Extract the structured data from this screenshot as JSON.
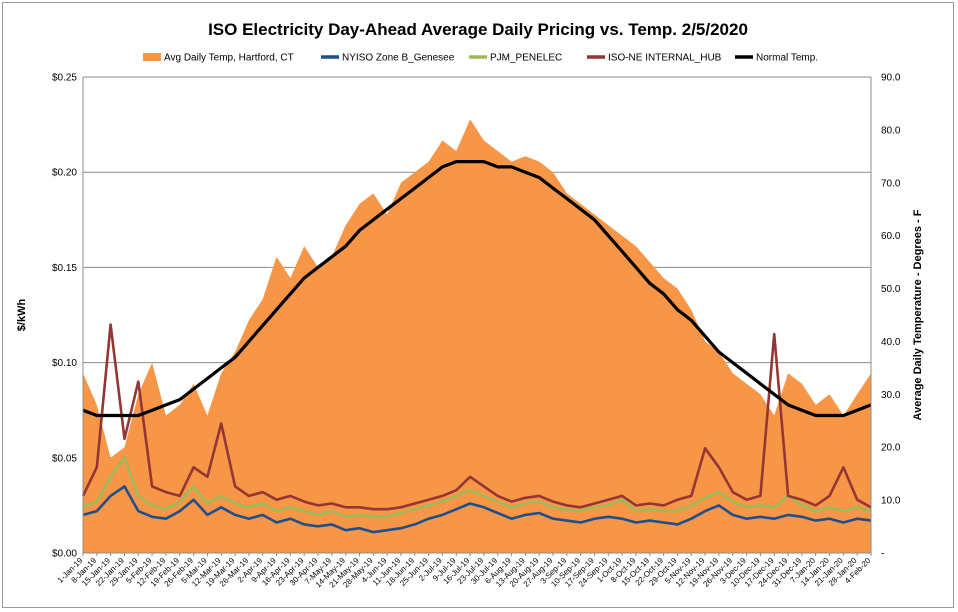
{
  "chart_data": {
    "type": "area",
    "title": "ISO Electricity Day-Ahead Average Daily Pricing vs. Temp. 2/5/2020",
    "ylabel": "$/kWh",
    "y2label": "Average Daily Temperature - Degrees - F",
    "ylim": [
      0,
      0.25
    ],
    "y2lim": [
      0,
      90
    ],
    "yticks": [
      "$0.00",
      "$0.05",
      "$0.10",
      "$0.15",
      "$0.20",
      "$0.25"
    ],
    "y2ticks": [
      "-",
      "10.0",
      "20.0",
      "30.0",
      "40.0",
      "50.0",
      "60.0",
      "70.0",
      "80.0",
      "90.0"
    ],
    "grid": true,
    "legend_position": "top",
    "x_start": "1-Jan-19",
    "x_labels": [
      "1-Jan-19",
      "8-Jan-19",
      "15-Jan-19",
      "22-Jan-19",
      "29-Jan-19",
      "5-Feb-19",
      "12-Feb-19",
      "19-Feb-19",
      "26-Feb-19",
      "5-Mar-19",
      "12-Mar-19",
      "19-Mar-19",
      "26-Mar-19",
      "2-Apr-19",
      "9-Apr-19",
      "16-Apr-19",
      "23-Apr-19",
      "30-Apr-19",
      "7-May-19",
      "14-May-19",
      "21-May-19",
      "28-May-19",
      "4-Jun-19",
      "11-Jun-19",
      "18-Jun-19",
      "25-Jun-19",
      "2-Jul-19",
      "9-Jul-19",
      "16-Jul-19",
      "23-Jul-19",
      "30-Jul-19",
      "6-Aug-19",
      "13-Aug-19",
      "20-Aug-19",
      "27-Aug-19",
      "3-Sep-19",
      "10-Sep-19",
      "17-Sep-19",
      "24-Sep-19",
      "1-Oct-19",
      "8-Oct-19",
      "15-Oct-19",
      "22-Oct-19",
      "29-Oct-19",
      "5-Nov-19",
      "12-Nov-19",
      "19-Nov-19",
      "26-Nov-19",
      "3-Dec-19",
      "10-Dec-19",
      "17-Dec-19",
      "24-Dec-19",
      "31-Dec-19",
      "7-Jan-20",
      "14-Jan-20",
      "21-Jan-20",
      "28-Jan-20",
      "4-Feb-20"
    ],
    "series": [
      {
        "name": "Avg Daily Temp, Hartford, CT",
        "kind": "area",
        "axis": "right",
        "color": "#F79646",
        "x": [
          "1-Jan-19",
          "8-Jan-19",
          "15-Jan-19",
          "22-Jan-19",
          "29-Jan-19",
          "5-Feb-19",
          "12-Feb-19",
          "19-Feb-19",
          "26-Feb-19",
          "5-Mar-19",
          "12-Mar-19",
          "19-Mar-19",
          "26-Mar-19",
          "2-Apr-19",
          "9-Apr-19",
          "16-Apr-19",
          "23-Apr-19",
          "30-Apr-19",
          "7-May-19",
          "14-May-19",
          "21-May-19",
          "28-May-19",
          "4-Jun-19",
          "11-Jun-19",
          "18-Jun-19",
          "25-Jun-19",
          "2-Jul-19",
          "9-Jul-19",
          "16-Jul-19",
          "23-Jul-19",
          "30-Jul-19",
          "6-Aug-19",
          "13-Aug-19",
          "20-Aug-19",
          "27-Aug-19",
          "3-Sep-19",
          "10-Sep-19",
          "17-Sep-19",
          "24-Sep-19",
          "1-Oct-19",
          "8-Oct-19",
          "15-Oct-19",
          "22-Oct-19",
          "29-Oct-19",
          "5-Nov-19",
          "12-Nov-19",
          "19-Nov-19",
          "26-Nov-19",
          "3-Dec-19",
          "10-Dec-19",
          "17-Dec-19",
          "24-Dec-19",
          "31-Dec-19",
          "7-Jan-20",
          "14-Jan-20",
          "21-Jan-20",
          "28-Jan-20",
          "4-Feb-20"
        ],
        "values": [
          34,
          28,
          18,
          20,
          30,
          36,
          26,
          28,
          32,
          26,
          34,
          38,
          44,
          48,
          56,
          52,
          58,
          54,
          56,
          62,
          66,
          68,
          64,
          70,
          72,
          74,
          78,
          76,
          82,
          78,
          76,
          74,
          75,
          74,
          72,
          68,
          66,
          64,
          62,
          60,
          58,
          55,
          52,
          50,
          46,
          40,
          38,
          34,
          32,
          30,
          26,
          34,
          32,
          28,
          30,
          26,
          30,
          34
        ]
      },
      {
        "name": "NYISO Zone B_Genesee",
        "kind": "line",
        "axis": "left",
        "color": "#1F4E8C",
        "x": [
          "1-Jan-19",
          "8-Jan-19",
          "15-Jan-19",
          "22-Jan-19",
          "29-Jan-19",
          "5-Feb-19",
          "12-Feb-19",
          "19-Feb-19",
          "26-Feb-19",
          "5-Mar-19",
          "12-Mar-19",
          "19-Mar-19",
          "26-Mar-19",
          "2-Apr-19",
          "9-Apr-19",
          "16-Apr-19",
          "23-Apr-19",
          "30-Apr-19",
          "7-May-19",
          "14-May-19",
          "21-May-19",
          "28-May-19",
          "4-Jun-19",
          "11-Jun-19",
          "18-Jun-19",
          "25-Jun-19",
          "2-Jul-19",
          "9-Jul-19",
          "16-Jul-19",
          "23-Jul-19",
          "30-Jul-19",
          "6-Aug-19",
          "13-Aug-19",
          "20-Aug-19",
          "27-Aug-19",
          "3-Sep-19",
          "10-Sep-19",
          "17-Sep-19",
          "24-Sep-19",
          "1-Oct-19",
          "8-Oct-19",
          "15-Oct-19",
          "22-Oct-19",
          "29-Oct-19",
          "5-Nov-19",
          "12-Nov-19",
          "19-Nov-19",
          "26-Nov-19",
          "3-Dec-19",
          "10-Dec-19",
          "17-Dec-19",
          "24-Dec-19",
          "31-Dec-19",
          "7-Jan-20",
          "14-Jan-20",
          "21-Jan-20",
          "28-Jan-20",
          "4-Feb-20"
        ],
        "values": [
          0.02,
          0.022,
          0.03,
          0.035,
          0.022,
          0.019,
          0.018,
          0.022,
          0.028,
          0.02,
          0.024,
          0.02,
          0.018,
          0.02,
          0.016,
          0.018,
          0.015,
          0.014,
          0.015,
          0.012,
          0.013,
          0.011,
          0.012,
          0.013,
          0.015,
          0.018,
          0.02,
          0.023,
          0.026,
          0.024,
          0.021,
          0.018,
          0.02,
          0.021,
          0.018,
          0.017,
          0.016,
          0.018,
          0.019,
          0.018,
          0.016,
          0.017,
          0.016,
          0.015,
          0.018,
          0.022,
          0.025,
          0.02,
          0.018,
          0.019,
          0.018,
          0.02,
          0.019,
          0.017,
          0.018,
          0.016,
          0.018,
          0.017
        ]
      },
      {
        "name": "PJM_PENELEC",
        "kind": "line",
        "axis": "left",
        "color": "#9BBB59",
        "x": [
          "1-Jan-19",
          "8-Jan-19",
          "15-Jan-19",
          "22-Jan-19",
          "29-Jan-19",
          "5-Feb-19",
          "12-Feb-19",
          "19-Feb-19",
          "26-Feb-19",
          "5-Mar-19",
          "12-Mar-19",
          "19-Mar-19",
          "26-Mar-19",
          "2-Apr-19",
          "9-Apr-19",
          "16-Apr-19",
          "23-Apr-19",
          "30-Apr-19",
          "7-May-19",
          "14-May-19",
          "21-May-19",
          "28-May-19",
          "4-Jun-19",
          "11-Jun-19",
          "18-Jun-19",
          "25-Jun-19",
          "2-Jul-19",
          "9-Jul-19",
          "16-Jul-19",
          "23-Jul-19",
          "30-Jul-19",
          "6-Aug-19",
          "13-Aug-19",
          "20-Aug-19",
          "27-Aug-19",
          "3-Sep-19",
          "10-Sep-19",
          "17-Sep-19",
          "24-Sep-19",
          "1-Oct-19",
          "8-Oct-19",
          "15-Oct-19",
          "22-Oct-19",
          "29-Oct-19",
          "5-Nov-19",
          "12-Nov-19",
          "19-Nov-19",
          "26-Nov-19",
          "3-Dec-19",
          "10-Dec-19",
          "17-Dec-19",
          "24-Dec-19",
          "31-Dec-19",
          "7-Jan-20",
          "14-Jan-20",
          "21-Jan-20",
          "28-Jan-20",
          "4-Feb-20"
        ],
        "values": [
          0.024,
          0.027,
          0.04,
          0.05,
          0.03,
          0.025,
          0.023,
          0.027,
          0.035,
          0.026,
          0.03,
          0.026,
          0.024,
          0.026,
          0.022,
          0.024,
          0.022,
          0.02,
          0.022,
          0.019,
          0.02,
          0.019,
          0.019,
          0.021,
          0.023,
          0.025,
          0.027,
          0.03,
          0.033,
          0.03,
          0.027,
          0.024,
          0.026,
          0.027,
          0.024,
          0.023,
          0.022,
          0.024,
          0.025,
          0.028,
          0.022,
          0.023,
          0.022,
          0.022,
          0.025,
          0.029,
          0.032,
          0.027,
          0.024,
          0.025,
          0.024,
          0.03,
          0.025,
          0.022,
          0.024,
          0.022,
          0.024,
          0.022
        ]
      },
      {
        "name": "ISO-NE INTERNAL_HUB",
        "kind": "line",
        "axis": "left",
        "color": "#943634",
        "x": [
          "1-Jan-19",
          "8-Jan-19",
          "15-Jan-19",
          "22-Jan-19",
          "29-Jan-19",
          "5-Feb-19",
          "12-Feb-19",
          "19-Feb-19",
          "26-Feb-19",
          "5-Mar-19",
          "12-Mar-19",
          "19-Mar-19",
          "26-Mar-19",
          "2-Apr-19",
          "9-Apr-19",
          "16-Apr-19",
          "23-Apr-19",
          "30-Apr-19",
          "7-May-19",
          "14-May-19",
          "21-May-19",
          "28-May-19",
          "4-Jun-19",
          "11-Jun-19",
          "18-Jun-19",
          "25-Jun-19",
          "2-Jul-19",
          "9-Jul-19",
          "16-Jul-19",
          "23-Jul-19",
          "30-Jul-19",
          "6-Aug-19",
          "13-Aug-19",
          "20-Aug-19",
          "27-Aug-19",
          "3-Sep-19",
          "10-Sep-19",
          "17-Sep-19",
          "24-Sep-19",
          "1-Oct-19",
          "8-Oct-19",
          "15-Oct-19",
          "22-Oct-19",
          "29-Oct-19",
          "5-Nov-19",
          "12-Nov-19",
          "19-Nov-19",
          "26-Nov-19",
          "3-Dec-19",
          "10-Dec-19",
          "17-Dec-19",
          "24-Dec-19",
          "31-Dec-19",
          "7-Jan-20",
          "14-Jan-20",
          "21-Jan-20",
          "28-Jan-20",
          "4-Feb-20"
        ],
        "values": [
          0.03,
          0.045,
          0.12,
          0.06,
          0.09,
          0.035,
          0.032,
          0.03,
          0.045,
          0.04,
          0.068,
          0.035,
          0.03,
          0.032,
          0.028,
          0.03,
          0.027,
          0.025,
          0.026,
          0.024,
          0.024,
          0.023,
          0.023,
          0.024,
          0.026,
          0.028,
          0.03,
          0.033,
          0.04,
          0.035,
          0.03,
          0.027,
          0.029,
          0.03,
          0.027,
          0.025,
          0.024,
          0.026,
          0.028,
          0.03,
          0.025,
          0.026,
          0.025,
          0.028,
          0.03,
          0.055,
          0.045,
          0.032,
          0.028,
          0.03,
          0.115,
          0.03,
          0.028,
          0.025,
          0.03,
          0.045,
          0.028,
          0.024
        ]
      },
      {
        "name": "Normal Temp.",
        "kind": "line",
        "axis": "right",
        "color": "#000000",
        "x": [
          "1-Jan-19",
          "8-Jan-19",
          "15-Jan-19",
          "22-Jan-19",
          "29-Jan-19",
          "5-Feb-19",
          "12-Feb-19",
          "19-Feb-19",
          "26-Feb-19",
          "5-Mar-19",
          "12-Mar-19",
          "19-Mar-19",
          "26-Mar-19",
          "2-Apr-19",
          "9-Apr-19",
          "16-Apr-19",
          "23-Apr-19",
          "30-Apr-19",
          "7-May-19",
          "14-May-19",
          "21-May-19",
          "28-May-19",
          "4-Jun-19",
          "11-Jun-19",
          "18-Jun-19",
          "25-Jun-19",
          "2-Jul-19",
          "9-Jul-19",
          "16-Jul-19",
          "23-Jul-19",
          "30-Jul-19",
          "6-Aug-19",
          "13-Aug-19",
          "20-Aug-19",
          "27-Aug-19",
          "3-Sep-19",
          "10-Sep-19",
          "17-Sep-19",
          "24-Sep-19",
          "1-Oct-19",
          "8-Oct-19",
          "15-Oct-19",
          "22-Oct-19",
          "29-Oct-19",
          "5-Nov-19",
          "12-Nov-19",
          "19-Nov-19",
          "26-Nov-19",
          "3-Dec-19",
          "10-Dec-19",
          "17-Dec-19",
          "24-Dec-19",
          "31-Dec-19",
          "7-Jan-20",
          "14-Jan-20",
          "21-Jan-20",
          "28-Jan-20",
          "4-Feb-20"
        ],
        "values": [
          27,
          26,
          26,
          26,
          26,
          27,
          28,
          29,
          31,
          33,
          35,
          37,
          40,
          43,
          46,
          49,
          52,
          54,
          56,
          58,
          61,
          63,
          65,
          67,
          69,
          71,
          73,
          74,
          74,
          74,
          73,
          73,
          72,
          71,
          69,
          67,
          65,
          63,
          60,
          57,
          54,
          51,
          49,
          46,
          44,
          41,
          38,
          36,
          34,
          32,
          30,
          28,
          27,
          26,
          26,
          26,
          27,
          28
        ]
      }
    ]
  }
}
